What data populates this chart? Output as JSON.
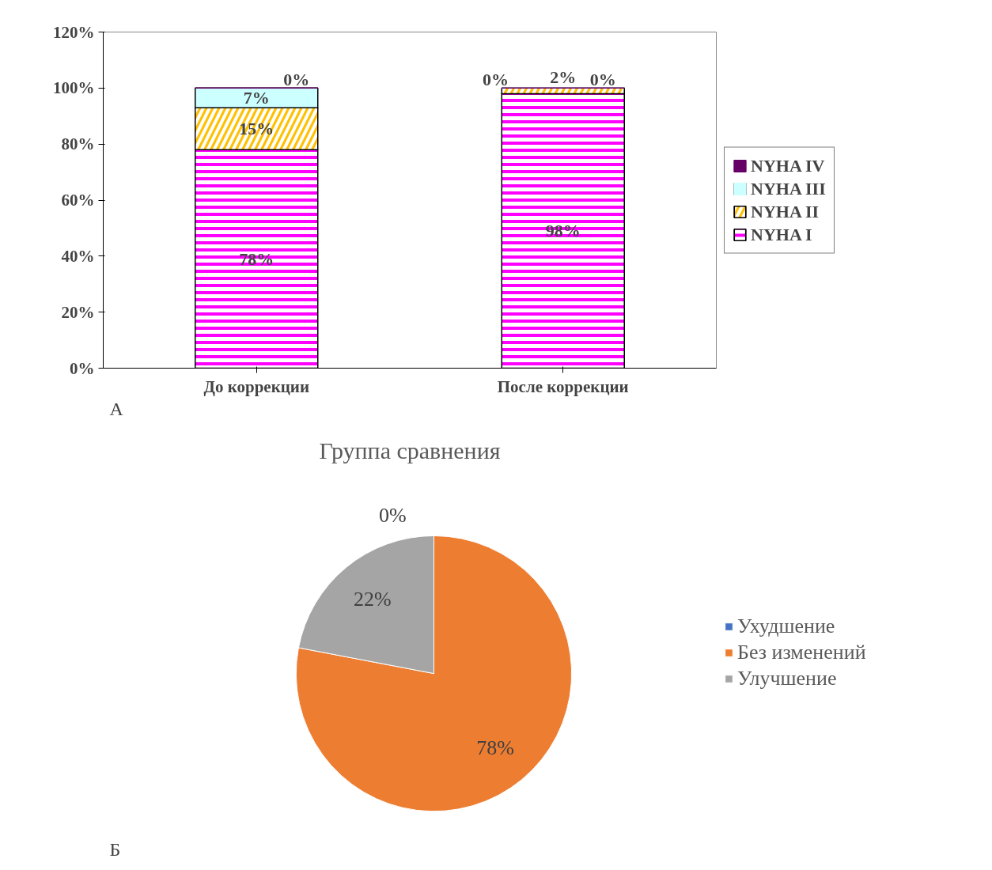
{
  "chart_data": [
    {
      "type": "bar",
      "stacked": true,
      "categories": [
        "До коррекции",
        "После коррекции"
      ],
      "series": [
        {
          "name": "NYHA I",
          "color": "#ff00ff",
          "values": [
            78,
            98
          ]
        },
        {
          "name": "NYHA II",
          "color": "#ffc000",
          "values": [
            15,
            2
          ]
        },
        {
          "name": "NYHA III",
          "color": "#ccffff",
          "values": [
            7,
            0
          ]
        },
        {
          "name": "NYHA IV",
          "color": "#660066",
          "values": [
            0,
            0
          ]
        }
      ],
      "ylim": [
        0,
        120
      ],
      "yticks": [
        {
          "value": 0,
          "label": "0%"
        },
        {
          "value": 20,
          "label": "20%"
        },
        {
          "value": 40,
          "label": "40%"
        },
        {
          "value": 60,
          "label": "60%"
        },
        {
          "value": 80,
          "label": "80%"
        },
        {
          "value": 100,
          "label": "100%"
        },
        {
          "value": 120,
          "label": "120%"
        }
      ],
      "value_labels": [
        [
          "78%",
          "98%"
        ],
        [
          "15%",
          "2%"
        ],
        [
          "7%",
          "0%"
        ],
        [
          "0%",
          "0%"
        ]
      ],
      "legend": "right",
      "grid": false,
      "annotations": [
        "А"
      ]
    },
    {
      "type": "pie",
      "title": "Группа сравнения",
      "categories": [
        "Ухудшение",
        "Без изменений",
        "Улучшение"
      ],
      "values": [
        0,
        78,
        22
      ],
      "colors": [
        "#4472c4",
        "#ed7d31",
        "#a5a5a5"
      ],
      "value_labels": [
        "0%",
        "78%",
        "22%"
      ],
      "legend": "right",
      "annotations": [
        "Б"
      ]
    }
  ]
}
